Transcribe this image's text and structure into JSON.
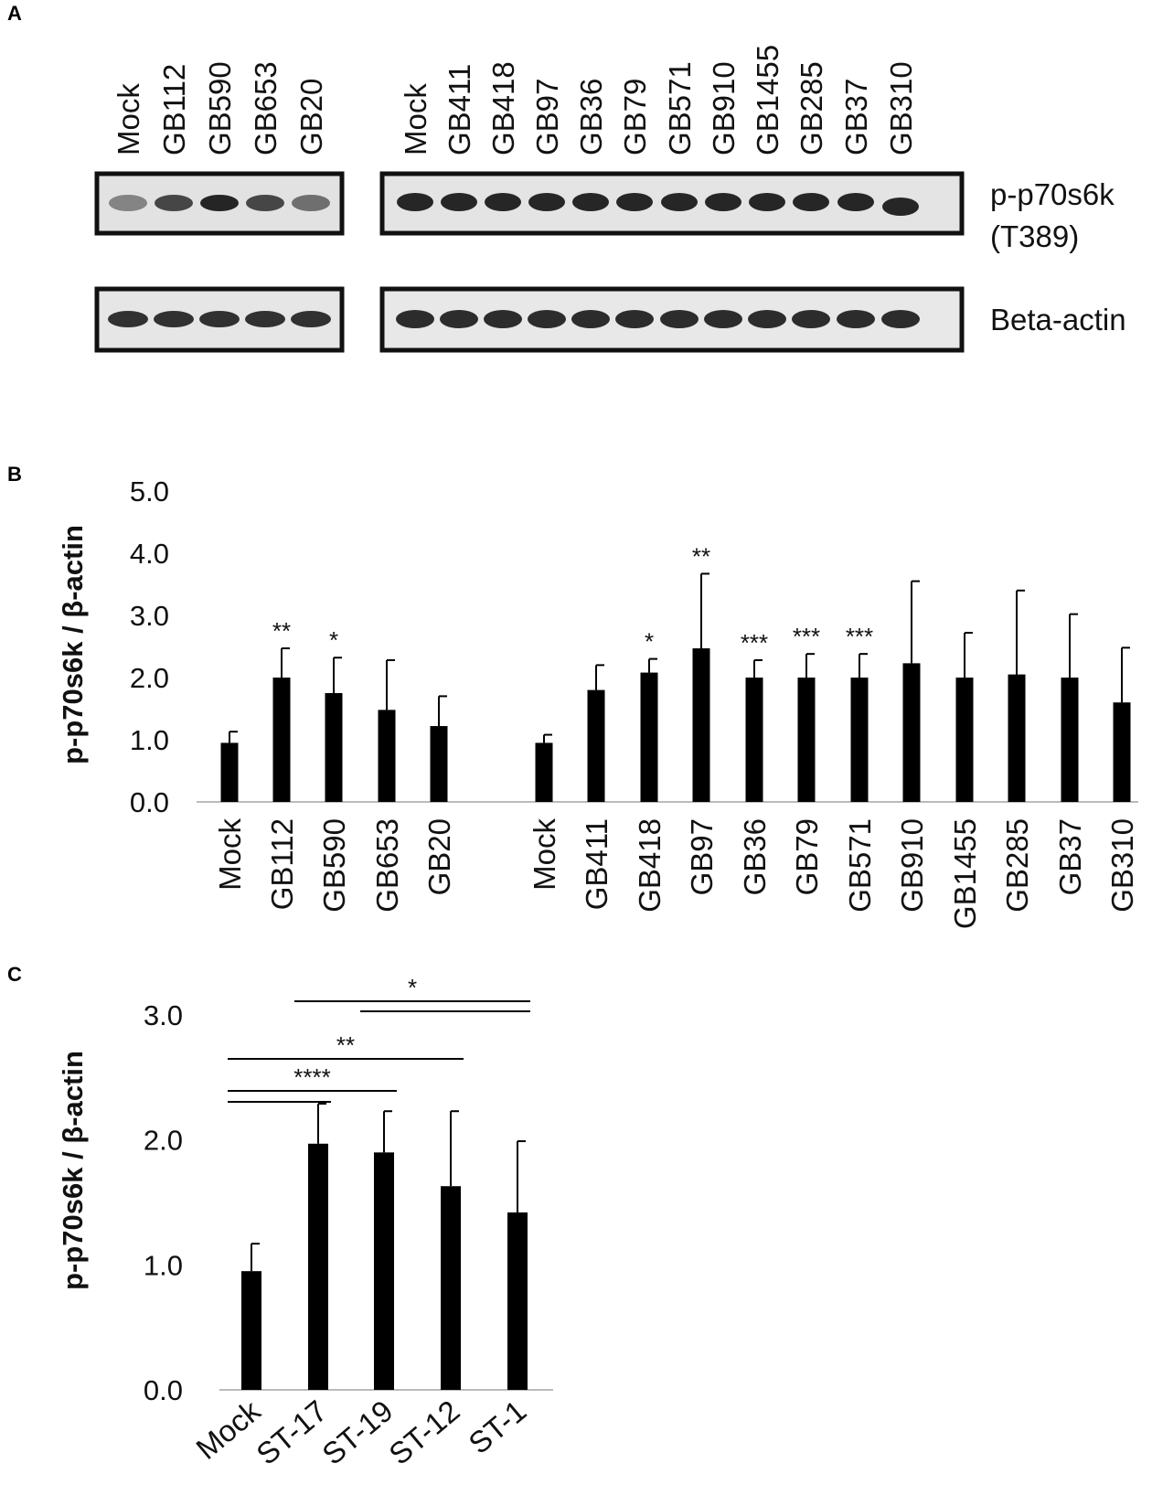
{
  "panels": {
    "a": "A",
    "b": "B",
    "c": "C"
  },
  "blot": {
    "left_lanes": [
      "Mock",
      "GB112",
      "GB590",
      "GB653",
      "GB20"
    ],
    "right_lanes": [
      "Mock",
      "GB411",
      "GB418",
      "GB97",
      "GB36",
      "GB79",
      "GB571",
      "GB910",
      "GB1455",
      "GB285",
      "GB37",
      "GB310"
    ],
    "row1_label_line1": "p-p70s6k",
    "row1_label_line2": "(T389)",
    "row2_label": "Beta-actin"
  },
  "chart_data": [
    {
      "type": "bar",
      "ylabel": "p-p70s6k / β-actin",
      "ylim": [
        0,
        5
      ],
      "yticks": [
        "0.0",
        "1.0",
        "2.0",
        "3.0",
        "4.0",
        "5.0"
      ],
      "groups": [
        {
          "categories": [
            "Mock",
            "GB112",
            "GB590",
            "GB653",
            "GB20"
          ],
          "values": [
            0.95,
            2.0,
            1.75,
            1.48,
            1.22
          ],
          "errors": [
            0.18,
            0.47,
            0.57,
            0.8,
            0.48
          ],
          "significance": [
            "",
            "**",
            "*",
            "",
            ""
          ]
        },
        {
          "categories": [
            "Mock",
            "GB411",
            "GB418",
            "GB97",
            "GB36",
            "GB79",
            "GB571",
            "GB910",
            "GB1455",
            "GB285",
            "GB37",
            "GB310"
          ],
          "values": [
            0.95,
            1.8,
            2.08,
            2.47,
            2.0,
            2.0,
            2.0,
            2.23,
            2.0,
            2.05,
            2.0,
            1.6
          ],
          "errors": [
            0.13,
            0.4,
            0.22,
            1.2,
            0.28,
            0.38,
            0.38,
            1.32,
            0.72,
            1.35,
            1.02,
            0.88
          ],
          "significance": [
            "",
            "",
            "*",
            "**",
            "***",
            "***",
            "***",
            "",
            "",
            "",
            "",
            ""
          ]
        }
      ]
    },
    {
      "type": "bar",
      "ylabel": "p-p70s6k / β-actin",
      "ylim": [
        0,
        3
      ],
      "yticks": [
        "0.0",
        "1.0",
        "2.0",
        "3.0"
      ],
      "categories": [
        "Mock",
        "ST-17",
        "ST-19",
        "ST-12",
        "ST-1"
      ],
      "values": [
        0.95,
        1.97,
        1.9,
        1.63,
        1.42
      ],
      "errors": [
        0.22,
        0.32,
        0.33,
        0.6,
        0.57
      ],
      "comparisons": [
        {
          "from": "Mock",
          "to": "ST-17",
          "label": ""
        },
        {
          "from": "Mock",
          "to": "ST-19",
          "label": "****"
        },
        {
          "from": "Mock",
          "to": "ST-12",
          "label": "**"
        },
        {
          "from": "ST-19",
          "to": "ST-1",
          "label": ""
        },
        {
          "from": "ST-17",
          "to": "ST-1",
          "label": "*"
        }
      ]
    }
  ]
}
